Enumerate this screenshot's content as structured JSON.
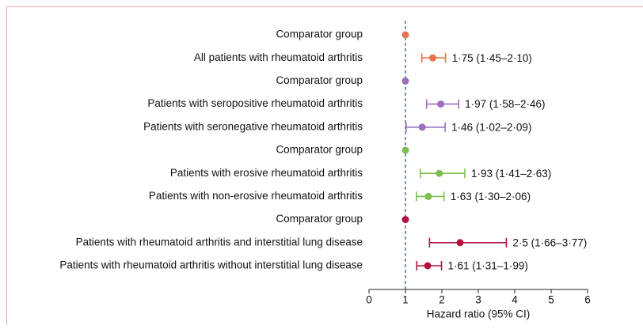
{
  "chart_data": {
    "type": "forest",
    "categories": [
      "Comparator group",
      "All patients with rheumatoid arthritis",
      "Comparator group",
      "Patients with seropositive rheumatoid arthritis",
      "Patients with seronegative rheumatoid arthritis",
      "Comparator group",
      "Patients with erosive rheumatoid arthritis",
      "Patients with non-erosive rheumatoid arthritis",
      "Comparator group",
      "Patients with rheumatoid arthritis and interstitial lung disease",
      "Patients with rheumatoid arthritis without interstitial lung disease"
    ],
    "values": [
      1,
      1.75,
      1,
      1.97,
      1.46,
      1,
      1.93,
      1.63,
      1,
      2.5,
      1.61
    ],
    "lower": [
      null,
      1.45,
      null,
      1.58,
      1.02,
      null,
      1.41,
      1.3,
      null,
      1.66,
      1.31
    ],
    "upper": [
      null,
      2.1,
      null,
      2.46,
      2.09,
      null,
      2.63,
      2.06,
      null,
      3.77,
      1.99
    ],
    "value_labels": [
      null,
      "1·75 (1·45–2·10)",
      null,
      "1·97 (1·58–2·46)",
      "1·46 (1·02–2·09)",
      null,
      "1·93 (1·41–2·63)",
      "1·63 (1·30–2·06)",
      null,
      "2·5 (1·66–3·77)",
      "1·61 (1·31–1·99)"
    ],
    "colors": [
      "#e8704a",
      "#e8704a",
      "#9b6fbf",
      "#9b6fbf",
      "#9b6fbf",
      "#7dbf4f",
      "#7dbf4f",
      "#7dbf4f",
      "#b3123f",
      "#b3123f",
      "#b3123f"
    ],
    "reference": 1,
    "xlim": [
      0,
      6
    ],
    "xticks": [
      0,
      1,
      2,
      3,
      4,
      5,
      6
    ],
    "xlabel": "Hazard ratio (95% CI)"
  }
}
